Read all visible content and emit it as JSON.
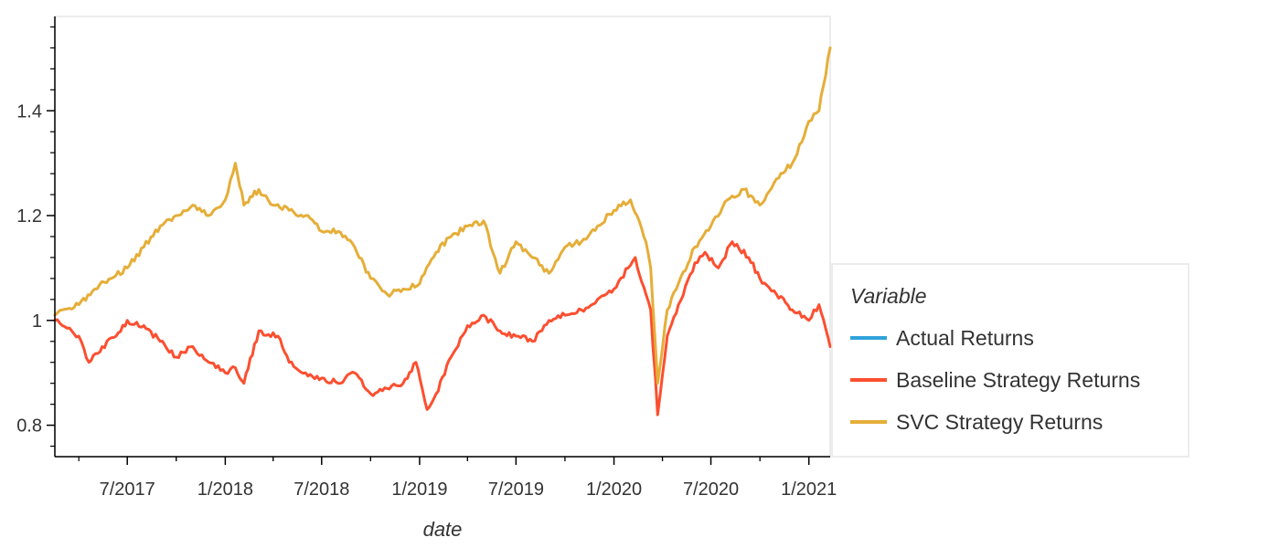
{
  "chart_data": {
    "type": "line",
    "xlabel": "date",
    "ylabel": "",
    "x_range": [
      "2017-02-15",
      "2021-02-10"
    ],
    "ylim": [
      0.74,
      1.58
    ],
    "x_ticks": [
      {
        "date": "2017-07-01",
        "label": "7/2017"
      },
      {
        "date": "2018-01-01",
        "label": "1/2018"
      },
      {
        "date": "2018-07-01",
        "label": "7/2018"
      },
      {
        "date": "2019-01-01",
        "label": "1/2019"
      },
      {
        "date": "2019-07-01",
        "label": "7/2019"
      },
      {
        "date": "2020-01-01",
        "label": "1/2020"
      },
      {
        "date": "2020-07-01",
        "label": "7/2020"
      },
      {
        "date": "2021-01-01",
        "label": "1/2021"
      }
    ],
    "y_ticks": [
      {
        "value": 0.8,
        "label": "0.8"
      },
      {
        "value": 1.0,
        "label": "1"
      },
      {
        "value": 1.2,
        "label": "1.2"
      },
      {
        "value": 1.4,
        "label": "1.4"
      }
    ],
    "grid": false,
    "legend": {
      "title": "Variable",
      "placement": "right"
    },
    "series": [
      {
        "name": "Actual Returns",
        "color": "#30a2da",
        "x": [],
        "values": []
      },
      {
        "name": "Baseline Strategy Returns",
        "color": "#fc4f30",
        "x": [
          "2017-02-15",
          "2017-03-01",
          "2017-04-01",
          "2017-04-20",
          "2017-05-15",
          "2017-06-10",
          "2017-07-01",
          "2017-08-01",
          "2017-09-01",
          "2017-10-01",
          "2017-11-01",
          "2017-12-01",
          "2018-01-01",
          "2018-01-20",
          "2018-02-05",
          "2018-03-05",
          "2018-04-10",
          "2018-05-01",
          "2018-06-01",
          "2018-07-01",
          "2018-08-01",
          "2018-09-01",
          "2018-10-01",
          "2018-11-01",
          "2018-12-01",
          "2018-12-25",
          "2019-01-15",
          "2019-02-01",
          "2019-03-01",
          "2019-04-01",
          "2019-05-01",
          "2019-06-01",
          "2019-07-01",
          "2019-08-01",
          "2019-09-01",
          "2019-10-01",
          "2019-11-01",
          "2019-12-01",
          "2020-01-01",
          "2020-02-10",
          "2020-03-01",
          "2020-03-10",
          "2020-03-23",
          "2020-04-10",
          "2020-05-01",
          "2020-06-01",
          "2020-06-20",
          "2020-07-15",
          "2020-08-10",
          "2020-09-10",
          "2020-10-01",
          "2020-11-01",
          "2020-12-01",
          "2021-01-01",
          "2021-01-20",
          "2021-02-10"
        ],
        "values": [
          1.0,
          0.99,
          0.97,
          0.92,
          0.95,
          0.97,
          1.0,
          0.99,
          0.96,
          0.93,
          0.95,
          0.92,
          0.9,
          0.91,
          0.88,
          0.98,
          0.97,
          0.92,
          0.9,
          0.89,
          0.88,
          0.9,
          0.86,
          0.87,
          0.88,
          0.92,
          0.83,
          0.86,
          0.93,
          0.99,
          1.01,
          0.98,
          0.97,
          0.96,
          1.0,
          1.01,
          1.02,
          1.04,
          1.06,
          1.12,
          1.05,
          1.02,
          0.82,
          0.97,
          1.03,
          1.11,
          1.13,
          1.1,
          1.15,
          1.12,
          1.08,
          1.05,
          1.02,
          1.0,
          1.03,
          0.95
        ]
      },
      {
        "name": "SVC Strategy Returns",
        "color": "#e5ae38",
        "x": [
          "2017-02-15",
          "2017-03-01",
          "2017-04-01",
          "2017-05-01",
          "2017-06-01",
          "2017-07-01",
          "2017-08-01",
          "2017-09-01",
          "2017-10-01",
          "2017-11-01",
          "2017-12-01",
          "2018-01-01",
          "2018-01-20",
          "2018-02-05",
          "2018-03-05",
          "2018-04-01",
          "2018-05-01",
          "2018-06-01",
          "2018-07-01",
          "2018-08-01",
          "2018-09-01",
          "2018-10-01",
          "2018-11-01",
          "2018-12-01",
          "2019-01-01",
          "2019-02-01",
          "2019-03-01",
          "2019-04-01",
          "2019-05-01",
          "2019-06-01",
          "2019-07-01",
          "2019-08-01",
          "2019-09-01",
          "2019-10-01",
          "2019-11-01",
          "2019-12-01",
          "2020-01-01",
          "2020-02-01",
          "2020-03-01",
          "2020-03-10",
          "2020-03-23",
          "2020-04-10",
          "2020-05-01",
          "2020-06-01",
          "2020-07-01",
          "2020-08-01",
          "2020-09-01",
          "2020-10-01",
          "2020-11-01",
          "2020-12-01",
          "2021-01-01",
          "2021-01-20",
          "2021-02-10"
        ],
        "values": [
          1.01,
          1.02,
          1.03,
          1.06,
          1.08,
          1.1,
          1.14,
          1.18,
          1.2,
          1.22,
          1.2,
          1.23,
          1.3,
          1.22,
          1.25,
          1.22,
          1.21,
          1.2,
          1.17,
          1.17,
          1.14,
          1.08,
          1.05,
          1.06,
          1.07,
          1.13,
          1.16,
          1.18,
          1.19,
          1.09,
          1.15,
          1.12,
          1.09,
          1.14,
          1.15,
          1.18,
          1.21,
          1.23,
          1.15,
          1.1,
          0.88,
          1.02,
          1.07,
          1.14,
          1.18,
          1.23,
          1.25,
          1.22,
          1.27,
          1.3,
          1.38,
          1.4,
          1.52
        ]
      }
    ]
  }
}
